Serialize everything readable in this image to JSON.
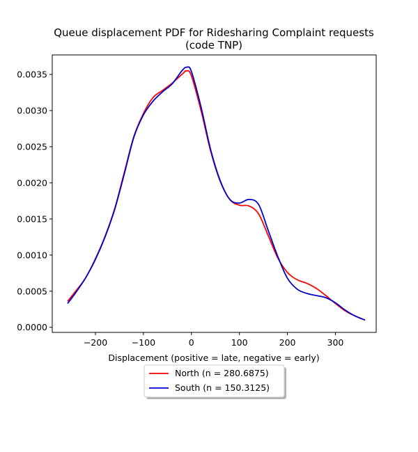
{
  "chart_data": {
    "type": "line",
    "title": "Queue displacement PDF for Ridesharing Complaint  requests",
    "subtitle": "(code TNP)",
    "xlabel": "Displacement (positive = late, negative = early)",
    "ylabel": "",
    "xlim": [
      -290,
      385
    ],
    "ylim": [
      -7e-05,
      0.00377
    ],
    "xticks": [
      -200,
      -100,
      0,
      100,
      200,
      300
    ],
    "xtick_labels": [
      "−200",
      "−100",
      "0",
      "100",
      "200",
      "300"
    ],
    "yticks": [
      0.0,
      0.0005,
      0.001,
      0.0015,
      0.002,
      0.0025,
      0.003,
      0.0035
    ],
    "ytick_labels": [
      "0.0000",
      "0.0005",
      "0.0010",
      "0.0015",
      "0.0020",
      "0.0025",
      "0.0030",
      "0.0035"
    ],
    "grid": false,
    "legend_position": "bottom-center",
    "series": [
      {
        "name": "North (n = 280.6875)",
        "color": "#ff0000",
        "x": [
          -258,
          -240,
          -220,
          -200,
          -180,
          -160,
          -140,
          -120,
          -100,
          -80,
          -60,
          -40,
          -20,
          -10,
          0,
          20,
          40,
          60,
          80,
          100,
          120,
          140,
          160,
          180,
          200,
          220,
          240,
          260,
          280,
          300,
          320,
          340,
          362
        ],
        "y": [
          0.00036,
          0.00051,
          0.00069,
          0.00095,
          0.00126,
          0.00164,
          0.00214,
          0.00264,
          0.00296,
          0.00318,
          0.00328,
          0.00338,
          0.0035,
          0.00355,
          0.00348,
          0.003,
          0.00244,
          0.00202,
          0.00177,
          0.00169,
          0.00168,
          0.00157,
          0.00127,
          0.00096,
          0.00076,
          0.00066,
          0.00061,
          0.00054,
          0.00044,
          0.00033,
          0.00023,
          0.00016,
          0.0001
        ]
      },
      {
        "name": "South (n = 150.3125)",
        "color": "#0000cc",
        "x": [
          -258,
          -240,
          -220,
          -200,
          -180,
          -160,
          -140,
          -120,
          -100,
          -80,
          -60,
          -40,
          -20,
          -10,
          0,
          20,
          40,
          60,
          80,
          100,
          120,
          140,
          160,
          180,
          200,
          220,
          240,
          260,
          280,
          300,
          320,
          340,
          362
        ],
        "y": [
          0.00033,
          0.00049,
          0.00069,
          0.00094,
          0.00125,
          0.00163,
          0.00212,
          0.00263,
          0.00294,
          0.00313,
          0.00326,
          0.00337,
          0.00355,
          0.0036,
          0.00354,
          0.00305,
          0.00246,
          0.00203,
          0.00177,
          0.00172,
          0.00177,
          0.0017,
          0.00134,
          0.00098,
          0.00068,
          0.00053,
          0.00047,
          0.00044,
          0.00041,
          0.00034,
          0.00024,
          0.00016,
          0.0001
        ]
      }
    ]
  }
}
